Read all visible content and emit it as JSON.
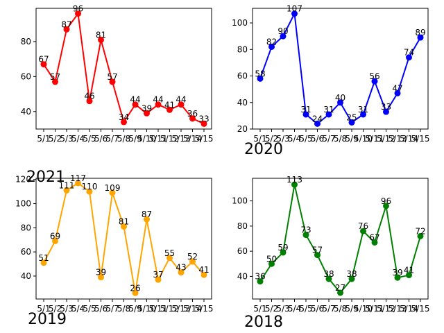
{
  "chart_data": [
    {
      "type": "line",
      "label": "",
      "categories": [
        "5/1",
        "5/2",
        "5/3",
        "5/4",
        "5/5",
        "5/6",
        "5/7",
        "5/8",
        "5/9",
        "5/10",
        "5/11",
        "5/12",
        "5/13",
        "5/14",
        "5/15"
      ],
      "values": [
        67,
        57,
        87,
        96,
        46,
        81,
        57,
        34,
        44,
        39,
        44,
        41,
        44,
        36,
        33
      ],
      "color": "#ff0000",
      "ylim": [
        30,
        99
      ],
      "yticks": [
        40,
        60,
        80
      ]
    },
    {
      "type": "line",
      "label": "2020",
      "categories": [
        "5/1",
        "5/2",
        "5/3",
        "5/4",
        "5/5",
        "5/6",
        "5/7",
        "5/8",
        "5/9",
        "5/10",
        "5/11",
        "5/12",
        "5/13",
        "5/14",
        "5/15"
      ],
      "values": [
        58,
        82,
        90,
        107,
        31,
        24,
        31,
        40,
        25,
        31,
        56,
        33,
        47,
        74,
        89
      ],
      "color": "#0000ff",
      "ylim": [
        20,
        111
      ],
      "yticks": [
        20,
        40,
        60,
        80,
        100
      ]
    },
    {
      "type": "line",
      "label": "2021",
      "categories": [
        "5/1",
        "5/2",
        "5/3",
        "5/4",
        "5/5",
        "5/6",
        "5/7",
        "5/8",
        "5/9",
        "5/10",
        "5/11",
        "5/12",
        "5/13",
        "5/14",
        "5/15"
      ],
      "values": [
        51,
        69,
        111,
        117,
        110,
        39,
        109,
        81,
        26,
        87,
        37,
        55,
        43,
        52,
        41
      ],
      "color": "#ffa500",
      "ylim": [
        21,
        121
      ],
      "yticks": [
        40,
        60,
        80,
        100,
        120
      ]
    },
    {
      "type": "line",
      "label": "2019",
      "categories": [],
      "values": []
    },
    {
      "type": "line",
      "label": "2018",
      "categories": [
        "5/1",
        "5/2",
        "5/3",
        "5/4",
        "5/5",
        "5/6",
        "5/7",
        "5/8",
        "5/9",
        "5/10",
        "5/11",
        "5/12",
        "5/13",
        "5/14",
        "5/15"
      ],
      "values": [
        36,
        50,
        59,
        113,
        73,
        57,
        38,
        27,
        38,
        76,
        67,
        96,
        39,
        41,
        72
      ],
      "color": "#008000",
      "ylim": [
        22,
        118
      ],
      "yticks": [
        40,
        60,
        80,
        100
      ]
    }
  ]
}
